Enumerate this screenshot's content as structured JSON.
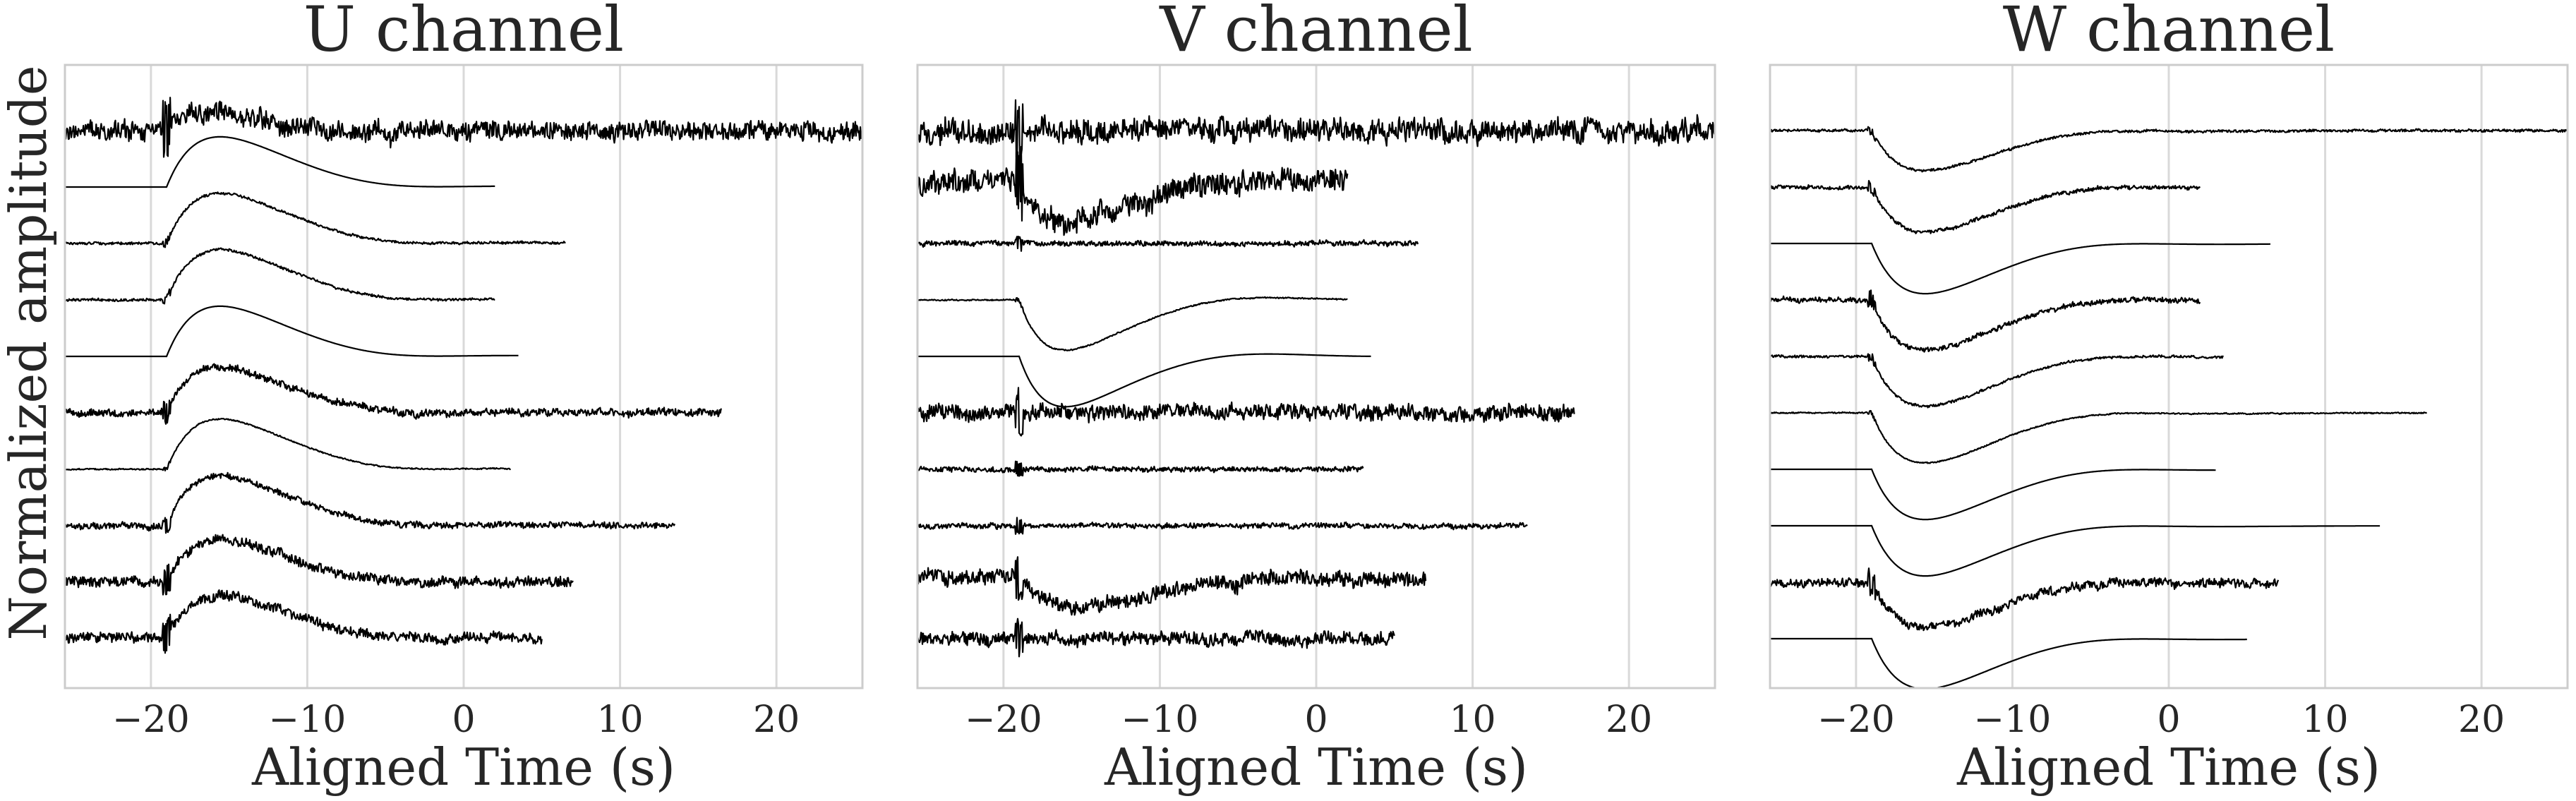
{
  "figure": {
    "ylabel": "Normalized amplitude"
  },
  "chart_data": [
    {
      "type": "line",
      "title": "U channel",
      "xlabel": "Aligned Time (s)",
      "ylabel": "Normalized amplitude",
      "xlim": [
        -25.5,
        25.5
      ],
      "xticks": [
        -20,
        -10,
        0,
        10,
        20
      ],
      "xtick_labels": [
        "−20",
        "−10",
        "0",
        "10",
        "20"
      ],
      "grid": "vertical",
      "series": [
        {
          "start": -25.5,
          "end": 25.5,
          "onset": -19,
          "peak_time": -16.5,
          "form": "bump",
          "amp": 0.35,
          "noise": 0.15,
          "offset": 0
        },
        {
          "start": -25.5,
          "end": 2.0,
          "onset": -19,
          "peak_time": -15.5,
          "form": "bump",
          "amp": 1.0,
          "noise": 0.0,
          "offset": -1
        },
        {
          "start": -25.5,
          "end": 6.5,
          "onset": -19,
          "peak_time": -15.5,
          "form": "bump",
          "amp": 1.0,
          "noise": 0.02,
          "offset": -2
        },
        {
          "start": -25.5,
          "end": 2.0,
          "onset": -19,
          "peak_time": -15.5,
          "form": "bump",
          "amp": 1.0,
          "noise": 0.02,
          "offset": -3
        },
        {
          "start": -25.5,
          "end": 3.5,
          "onset": -19,
          "peak_time": -15.5,
          "form": "bump",
          "amp": 1.0,
          "noise": 0.0,
          "offset": -4
        },
        {
          "start": -25.5,
          "end": 16.5,
          "onset": -19,
          "peak_time": -15.5,
          "form": "bump",
          "amp": 0.9,
          "noise": 0.06,
          "offset": -5
        },
        {
          "start": -25.5,
          "end": 3.0,
          "onset": -19,
          "peak_time": -15.5,
          "form": "bump",
          "amp": 1.0,
          "noise": 0.01,
          "offset": -6
        },
        {
          "start": -25.5,
          "end": 13.5,
          "onset": -19,
          "peak_time": -15.5,
          "form": "bump",
          "amp": 1.0,
          "noise": 0.05,
          "offset": -7
        },
        {
          "start": -25.5,
          "end": 7.0,
          "onset": -19,
          "peak_time": -15.5,
          "form": "bump",
          "amp": 0.85,
          "noise": 0.08,
          "offset": -8
        },
        {
          "start": -25.5,
          "end": 5.0,
          "onset": -19,
          "peak_time": -15.5,
          "form": "bump",
          "amp": 0.85,
          "noise": 0.08,
          "offset": -9
        }
      ]
    },
    {
      "type": "line",
      "title": "V channel",
      "xlabel": "Aligned Time (s)",
      "xlim": [
        -25.5,
        25.5
      ],
      "xticks": [
        -20,
        -10,
        0,
        10,
        20
      ],
      "xtick_labels": [
        "−20",
        "−10",
        "0",
        "10",
        "20"
      ],
      "grid": "vertical",
      "series": [
        {
          "start": -25.5,
          "end": 25.5,
          "onset": -19,
          "peak_time": -16,
          "form": "flat",
          "amp": 0.0,
          "noise": 0.18,
          "offset": 0
        },
        {
          "start": -25.5,
          "end": 2.0,
          "onset": -19,
          "peak_time": -16,
          "form": "dip",
          "amp": 0.8,
          "noise": 0.18,
          "offset": -0.9
        },
        {
          "start": -25.5,
          "end": 6.5,
          "onset": -19,
          "peak_time": -16,
          "form": "flat",
          "amp": 0.0,
          "noise": 0.04,
          "offset": -2
        },
        {
          "start": -25.5,
          "end": 2.0,
          "onset": -19,
          "peak_time": -16,
          "form": "dip",
          "amp": 1.0,
          "noise": 0.01,
          "offset": -3
        },
        {
          "start": -25.5,
          "end": 3.5,
          "onset": -19,
          "peak_time": -16,
          "form": "dip",
          "amp": 1.0,
          "noise": 0.0,
          "offset": -4
        },
        {
          "start": -25.5,
          "end": 16.5,
          "onset": -19,
          "peak_time": -16,
          "form": "flat",
          "amp": 0.2,
          "noise": 0.12,
          "offset": -5
        },
        {
          "start": -25.5,
          "end": 3.0,
          "onset": -19,
          "peak_time": -16,
          "form": "flat",
          "amp": 0.0,
          "noise": 0.04,
          "offset": -6
        },
        {
          "start": -25.5,
          "end": 13.5,
          "onset": -19,
          "peak_time": -16,
          "form": "flat",
          "amp": 0.0,
          "noise": 0.04,
          "offset": -7
        },
        {
          "start": -25.5,
          "end": 7.0,
          "onset": -19,
          "peak_time": -15,
          "form": "dip",
          "amp": 0.6,
          "noise": 0.12,
          "offset": -7.9
        },
        {
          "start": -25.5,
          "end": 5.0,
          "onset": -19,
          "peak_time": -16,
          "form": "flat",
          "amp": 0.0,
          "noise": 0.1,
          "offset": -9
        }
      ]
    },
    {
      "type": "line",
      "title": "W channel",
      "xlabel": "Aligned Time (s)",
      "xlim": [
        -25.5,
        25.5
      ],
      "xticks": [
        -20,
        -10,
        0,
        10,
        20
      ],
      "xtick_labels": [
        "−20",
        "−10",
        "0",
        "10",
        "20"
      ],
      "grid": "vertical",
      "series": [
        {
          "start": -25.5,
          "end": 25.5,
          "onset": -19,
          "peak_time": -15.5,
          "form": "dip",
          "amp": 0.8,
          "noise": 0.02,
          "offset": 0
        },
        {
          "start": -25.5,
          "end": 2.0,
          "onset": -19,
          "peak_time": -15.5,
          "form": "dip",
          "amp": 0.9,
          "noise": 0.03,
          "offset": -1
        },
        {
          "start": -25.5,
          "end": 6.5,
          "onset": -19,
          "peak_time": -15.5,
          "form": "dip",
          "amp": 1.0,
          "noise": 0.0,
          "offset": -2
        },
        {
          "start": -25.5,
          "end": 2.0,
          "onset": -19,
          "peak_time": -15.5,
          "form": "dip",
          "amp": 1.0,
          "noise": 0.04,
          "offset": -3
        },
        {
          "start": -25.5,
          "end": 3.5,
          "onset": -19,
          "peak_time": -15.5,
          "form": "dip",
          "amp": 1.0,
          "noise": 0.02,
          "offset": -4
        },
        {
          "start": -25.5,
          "end": 16.5,
          "onset": -19,
          "peak_time": -15.5,
          "form": "dip",
          "amp": 1.0,
          "noise": 0.01,
          "offset": -5
        },
        {
          "start": -25.5,
          "end": 3.0,
          "onset": -19,
          "peak_time": -15.5,
          "form": "dip",
          "amp": 1.0,
          "noise": 0.0,
          "offset": -6
        },
        {
          "start": -25.5,
          "end": 13.5,
          "onset": -19,
          "peak_time": -15.5,
          "form": "dip",
          "amp": 1.0,
          "noise": 0.0,
          "offset": -7
        },
        {
          "start": -25.5,
          "end": 7.0,
          "onset": -19,
          "peak_time": -15.5,
          "form": "dip",
          "amp": 0.9,
          "noise": 0.07,
          "offset": -8
        },
        {
          "start": -25.5,
          "end": 5.0,
          "onset": -19,
          "peak_time": -15.5,
          "form": "dip",
          "amp": 1.0,
          "noise": 0.0,
          "offset": -9
        }
      ]
    }
  ]
}
